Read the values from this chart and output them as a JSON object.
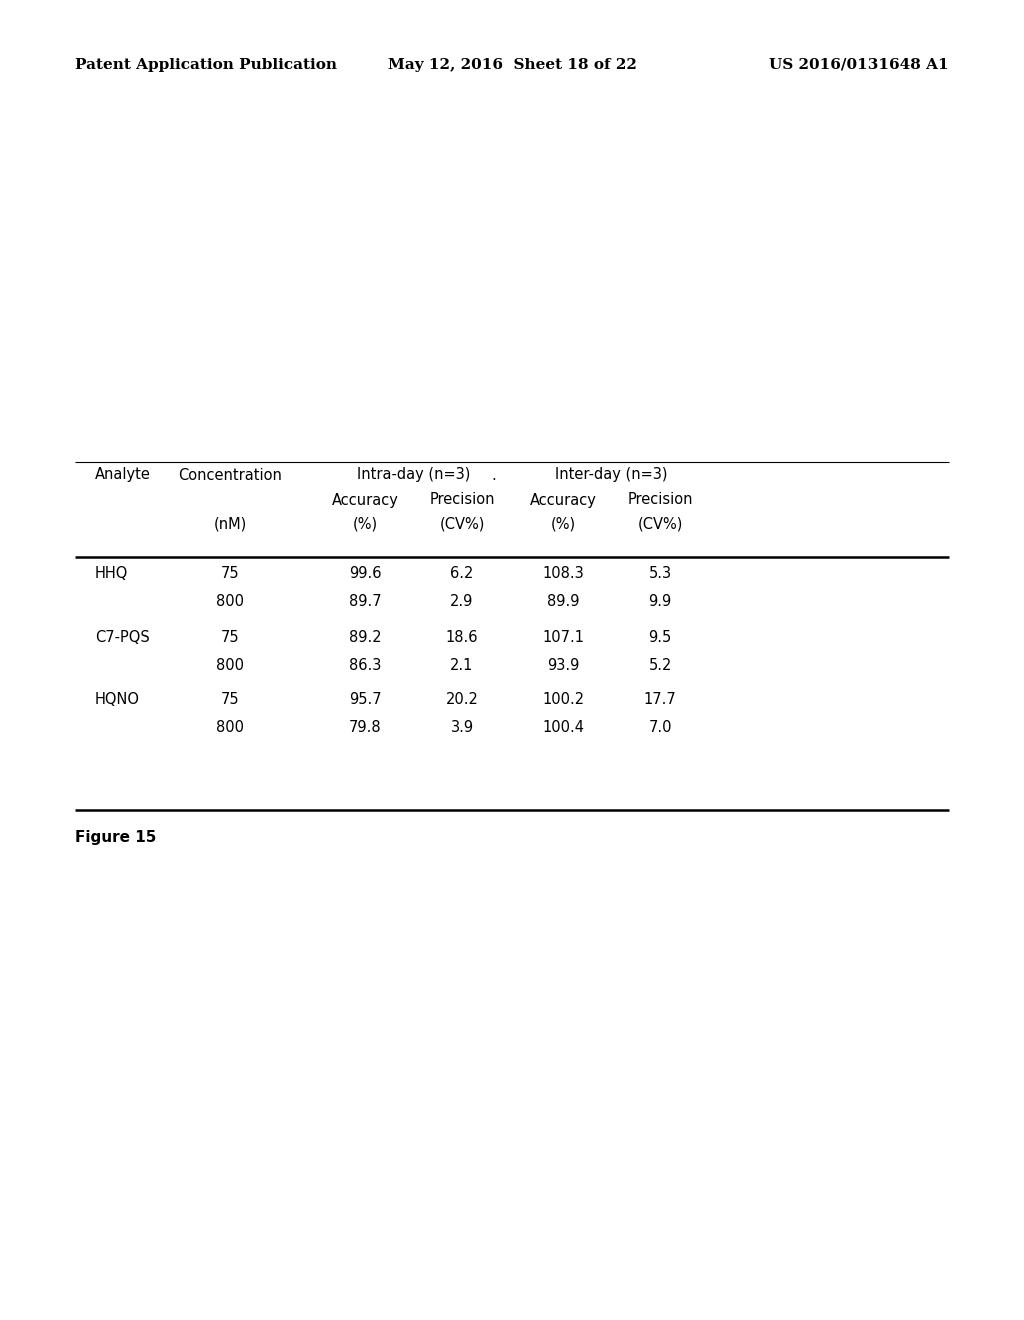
{
  "header_left": "Patent Application Publication",
  "header_mid": "May 12, 2016  Sheet 18 of 22",
  "header_right": "US 2016/0131648 A1",
  "figure_label": "Figure 15",
  "table": {
    "rows": [
      [
        "HHQ",
        "75",
        "99.6",
        "6.2",
        "108.3",
        "5.3"
      ],
      [
        "",
        "800",
        "89.7",
        "2.9",
        "89.9",
        "9.9"
      ],
      [
        "C7-PQS",
        "75",
        "89.2",
        "18.6",
        "107.1",
        "9.5"
      ],
      [
        "",
        "800",
        "86.3",
        "2.1",
        "93.9",
        "5.2"
      ],
      [
        "HQNO",
        "75",
        "95.7",
        "20.2",
        "100.2",
        "17.7"
      ],
      [
        "",
        "800",
        "79.8",
        "3.9",
        "100.4",
        "7.0"
      ]
    ]
  },
  "bg_color": "#ffffff",
  "text_color": "#000000",
  "header_fontsize": 11,
  "table_fontsize": 10.5
}
